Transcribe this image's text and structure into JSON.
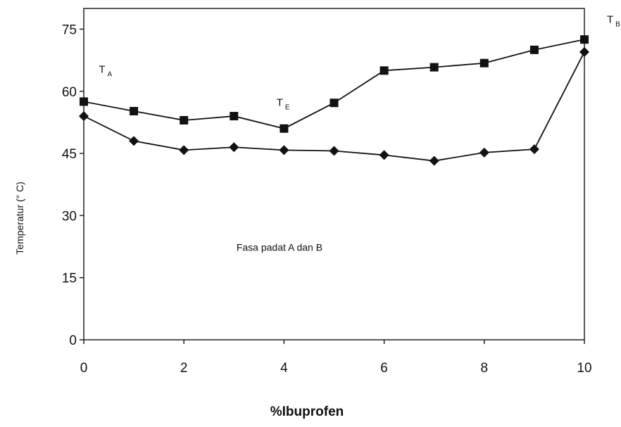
{
  "chart_data": {
    "type": "line",
    "xlabel": "%Ibuprofen",
    "ylabel": "Temperatur (° C)",
    "xlim": [
      0,
      10
    ],
    "ylim": [
      0,
      80
    ],
    "xticks": [
      "0",
      "2",
      "4",
      "6",
      "8",
      "10"
    ],
    "yticks": [
      "0",
      "15",
      "30",
      "45",
      "60",
      "75"
    ],
    "grid": false,
    "legend": "none",
    "series": [
      {
        "marker": "square",
        "color": "#111111",
        "x": [
          0,
          1,
          2,
          3,
          4,
          5,
          6,
          7,
          8,
          9,
          10
        ],
        "y": [
          57.5,
          55.2,
          53.0,
          54.0,
          51.0,
          57.2,
          65.0,
          65.8,
          66.8,
          70.0,
          72.5
        ]
      },
      {
        "marker": "diamond",
        "color": "#111111",
        "x": [
          0,
          1,
          2,
          3,
          4,
          5,
          6,
          7,
          8,
          9,
          10
        ],
        "y": [
          54.0,
          48.0,
          45.8,
          46.5,
          45.8,
          45.6,
          44.6,
          43.2,
          45.2,
          46.0,
          69.5
        ]
      }
    ],
    "annotations": [
      {
        "text": "T",
        "sub": "A",
        "x": 0.3,
        "y": 64.5
      },
      {
        "text": "T",
        "sub": "E",
        "x": 3.85,
        "y": 56.5
      },
      {
        "text": "T",
        "sub": "B",
        "x": 10.45,
        "y": 76.5
      },
      {
        "text": "Fasa padat A dan B",
        "x": 3.05,
        "y": 21.5
      }
    ]
  }
}
